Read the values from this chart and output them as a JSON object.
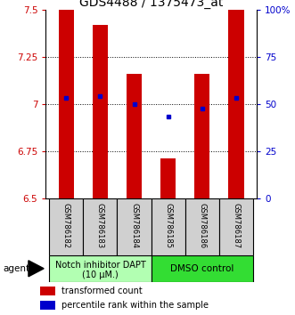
{
  "title": "GDS4488 / 1375473_at",
  "samples": [
    "GSM786182",
    "GSM786183",
    "GSM786184",
    "GSM786185",
    "GSM786186",
    "GSM786187"
  ],
  "bar_values": [
    7.5,
    7.42,
    7.16,
    6.71,
    7.16,
    7.5
  ],
  "percentile_values": [
    7.03,
    7.04,
    7.0,
    6.935,
    6.975,
    7.03
  ],
  "ylim": [
    6.5,
    7.5
  ],
  "yticks": [
    6.5,
    6.75,
    7.0,
    7.25,
    7.5
  ],
  "ytick_labels": [
    "6.5",
    "6.75",
    "7",
    "7.25",
    "7.5"
  ],
  "right_yticks": [
    0,
    25,
    50,
    75,
    100
  ],
  "right_ytick_labels": [
    "0",
    "25",
    "50",
    "75",
    "100%"
  ],
  "bar_color": "#cc0000",
  "percentile_color": "#0000cc",
  "bar_width": 0.45,
  "group0_color": "#b2ffb2",
  "group1_color": "#33dd33",
  "group0_label_line1": "Notch inhibitor DAPT",
  "group0_label_line2": "(10 μM.)",
  "group1_label": "DMSO control",
  "agent_label": "agent",
  "legend_bar_label": "transformed count",
  "legend_pct_label": "percentile rank within the sample",
  "title_fontsize": 10,
  "tick_fontsize": 7.5,
  "sample_fontsize": 6,
  "group_fontsize": 7,
  "legend_fontsize": 7
}
